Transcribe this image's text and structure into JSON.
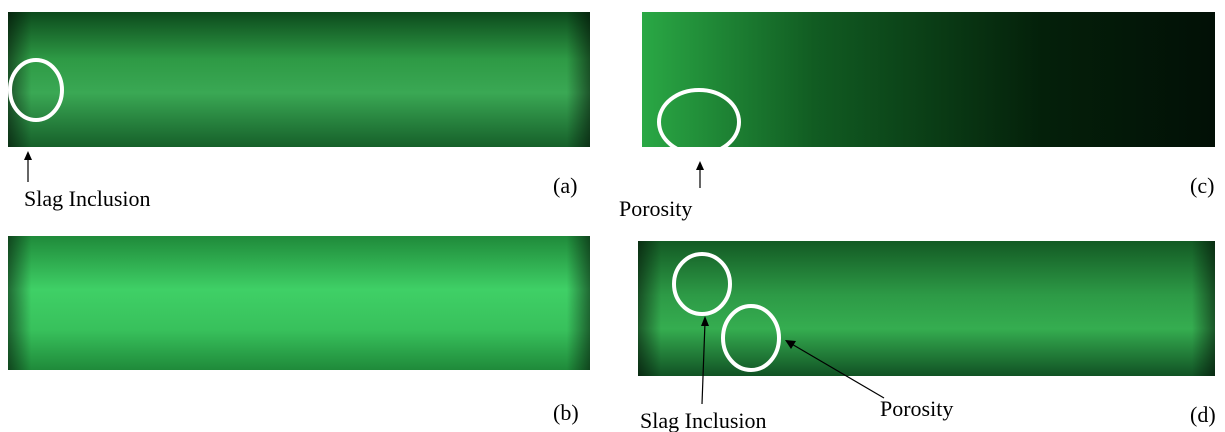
{
  "panels": [
    {
      "label": "(a)",
      "annotations": [
        "Slag Inclusion"
      ]
    },
    {
      "label": "(b)",
      "annotations": []
    },
    {
      "label": "(c)",
      "annotations": [
        "Porosity"
      ]
    },
    {
      "label": "(d)",
      "annotations": [
        "Slag Inclusion",
        "Porosity"
      ]
    }
  ]
}
